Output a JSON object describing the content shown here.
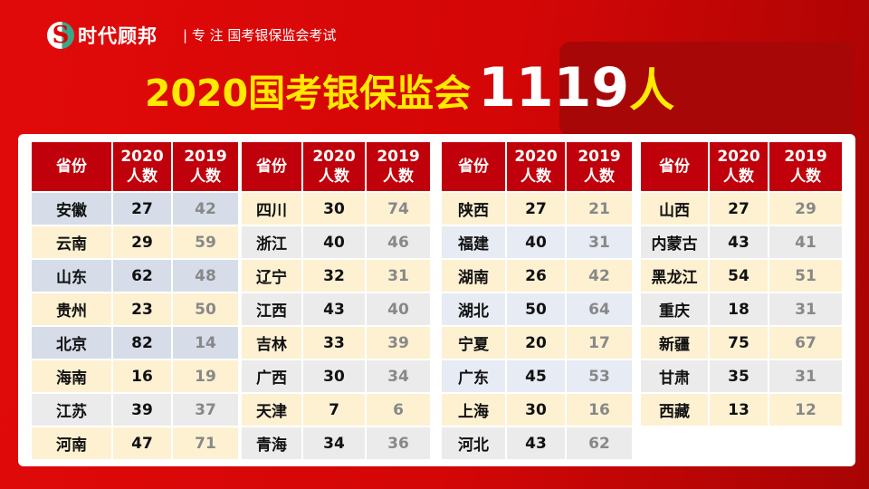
{
  "header": {
    "logo_name": "时代顾邦",
    "logo_letter": "S",
    "divider": "|",
    "slogan": "专 注 国考银保监会考试"
  },
  "title": {
    "main": "2020国考银保监会",
    "number": "1119",
    "unit": "人"
  },
  "colors": {
    "background": "#d40606",
    "header": "#c0000b",
    "title": "#ffea00"
  },
  "columns": [
    "省份",
    "2020\n人数",
    "2019\n人数"
  ],
  "tables": [
    {
      "rows": [
        [
          "安徽",
          "27",
          "42",
          "blue"
        ],
        [
          "云南",
          "29",
          "59",
          "cream"
        ],
        [
          "山东",
          "62",
          "48",
          "blue"
        ],
        [
          "贵州",
          "23",
          "50",
          "cream"
        ],
        [
          "北京",
          "82",
          "14",
          "blue"
        ],
        [
          "海南",
          "16",
          "19",
          "cream"
        ],
        [
          "江苏",
          "39",
          "37",
          "gray"
        ],
        [
          "河南",
          "47",
          "71",
          "cream"
        ]
      ]
    },
    {
      "rows": [
        [
          "四川",
          "30",
          "74",
          "cream"
        ],
        [
          "浙江",
          "40",
          "46",
          "gray"
        ],
        [
          "辽宁",
          "32",
          "31",
          "cream"
        ],
        [
          "江西",
          "43",
          "40",
          "gray"
        ],
        [
          "吉林",
          "33",
          "39",
          "cream"
        ],
        [
          "广西",
          "30",
          "34",
          "gray"
        ],
        [
          "天津",
          "7",
          "6",
          "cream"
        ],
        [
          "青海",
          "34",
          "36",
          "gray"
        ]
      ]
    },
    {
      "rows": [
        [
          "陕西",
          "27",
          "21",
          "cream"
        ],
        [
          "福建",
          "40",
          "31",
          "lblue"
        ],
        [
          "湖南",
          "26",
          "42",
          "cream"
        ],
        [
          "湖北",
          "50",
          "64",
          "lblue"
        ],
        [
          "宁夏",
          "20",
          "17",
          "cream"
        ],
        [
          "广东",
          "45",
          "53",
          "lblue"
        ],
        [
          "上海",
          "30",
          "16",
          "cream"
        ],
        [
          "河北",
          "43",
          "62",
          "gray"
        ]
      ]
    },
    {
      "rows": [
        [
          "山西",
          "27",
          "29",
          "cream"
        ],
        [
          "内蒙古",
          "43",
          "41",
          "gray"
        ],
        [
          "黑龙江",
          "54",
          "51",
          "cream"
        ],
        [
          "重庆",
          "18",
          "31",
          "gray"
        ],
        [
          "新疆",
          "75",
          "67",
          "cream"
        ],
        [
          "甘肃",
          "35",
          "31",
          "gray"
        ],
        [
          "西藏",
          "13",
          "12",
          "cream"
        ]
      ]
    }
  ]
}
